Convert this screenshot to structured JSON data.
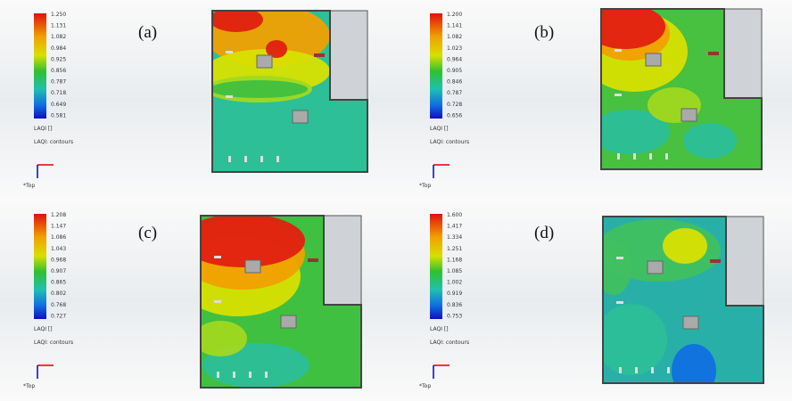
{
  "panels": [
    {
      "label": "(a)",
      "legend": [
        "1.250",
        "1.131",
        "1.082",
        "0.984",
        "0.925",
        "0.856",
        "0.787",
        "0.718",
        "0.649",
        "0.581"
      ],
      "unit": "LAQI []",
      "caption": "LAQI: contours",
      "view": "*Top"
    },
    {
      "label": "(b)",
      "legend": [
        "1.200",
        "1.141",
        "1.082",
        "1.023",
        "0.964",
        "0.905",
        "0.846",
        "0.787",
        "0.728",
        "0.656"
      ],
      "unit": "LAQI []",
      "caption": "LAQI: contours",
      "view": "*Top"
    },
    {
      "label": "(c)",
      "legend": [
        "1.208",
        "1.147",
        "1.086",
        "1.043",
        "0.968",
        "0.907",
        "0.865",
        "0.802",
        "0.768",
        "0.727"
      ],
      "unit": "LAQI []",
      "caption": "LAQI: contours",
      "view": "*Top"
    },
    {
      "label": "(d)",
      "legend": [
        "1.600",
        "1.417",
        "1.334",
        "1.251",
        "1.168",
        "1.085",
        "1.002",
        "0.919",
        "0.836",
        "0.753"
      ],
      "unit": "LAQI []",
      "caption": "LAQI: contours",
      "view": "*Top"
    }
  ]
}
